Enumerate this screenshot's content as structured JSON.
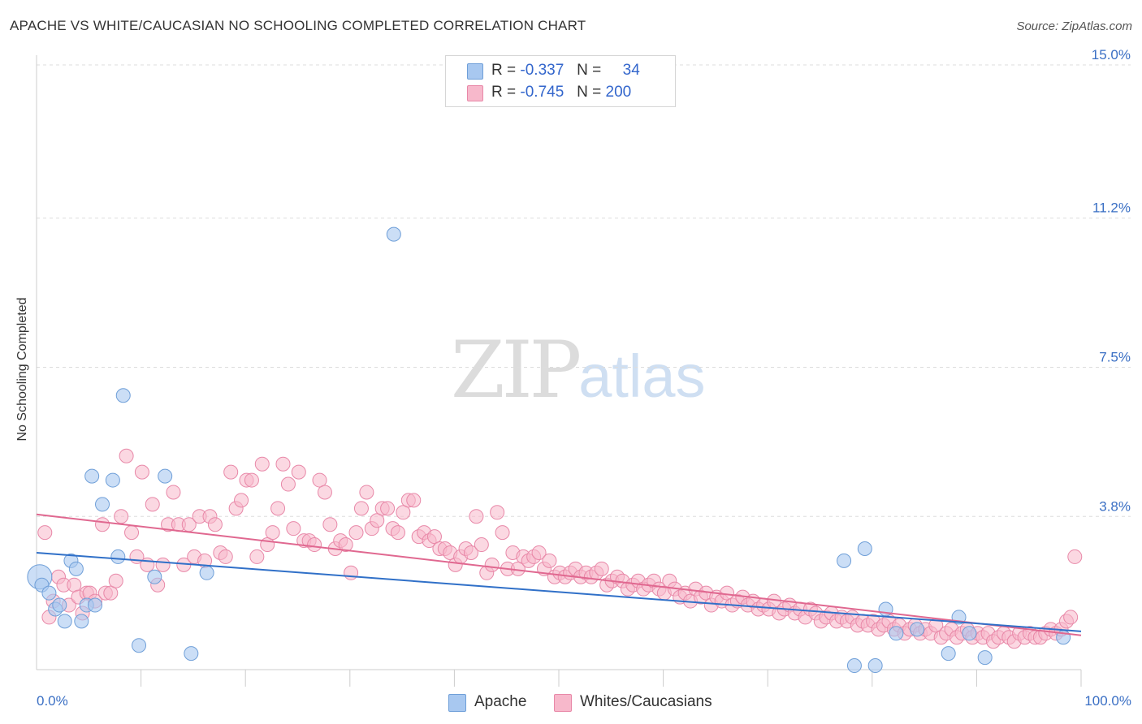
{
  "header": {
    "title": "APACHE VS WHITE/CAUCASIAN NO SCHOOLING COMPLETED CORRELATION CHART",
    "source": "Source: ZipAtlas.com"
  },
  "watermark": {
    "zip": "ZIP",
    "atlas": "atlas"
  },
  "legend_top": {
    "apache": {
      "r_label": "R =",
      "r_value": "-0.337",
      "n_label": "N =",
      "n_value": "34"
    },
    "white": {
      "r_label": "R =",
      "r_value": "-0.745",
      "n_label": "N =",
      "n_value": "200"
    }
  },
  "legend_bottom": {
    "apache": "Apache",
    "white": "Whites/Caucasians"
  },
  "colors": {
    "apache_fill": "#a8c8f0",
    "apache_stroke": "#6f9fd8",
    "apache_line": "#3070c8",
    "white_fill": "#f7b8cb",
    "white_stroke": "#e888a8",
    "white_line": "#e06890",
    "tick_label": "#3a6fc4",
    "grid": "#dddddd"
  },
  "chart_data": {
    "type": "scatter",
    "title": "APACHE VS WHITE/CAUCASIAN NO SCHOOLING COMPLETED CORRELATION CHART",
    "xlabel": "",
    "ylabel": "No Schooling Completed",
    "xlim": [
      0,
      100
    ],
    "ylim": [
      0,
      15
    ],
    "x_tick_labels": [
      "0.0%",
      "100.0%"
    ],
    "y_ticks": [
      3.8,
      7.5,
      11.2,
      15.0
    ],
    "y_tick_labels": [
      "3.8%",
      "7.5%",
      "11.2%",
      "15.0%"
    ],
    "grid": true,
    "legend_placement": "top-center",
    "series": [
      {
        "name": "Apache",
        "r": -0.337,
        "n": 34,
        "trend": {
          "x": [
            0,
            100
          ],
          "y": [
            2.9,
            0.95
          ]
        },
        "points": [
          [
            0.3,
            2.3
          ],
          [
            0.5,
            2.1
          ],
          [
            1.2,
            1.9
          ],
          [
            1.8,
            1.5
          ],
          [
            2.2,
            1.6
          ],
          [
            2.7,
            1.2
          ],
          [
            3.3,
            2.7
          ],
          [
            3.8,
            2.5
          ],
          [
            4.3,
            1.2
          ],
          [
            4.8,
            1.6
          ],
          [
            5.6,
            1.6
          ],
          [
            5.3,
            4.8
          ],
          [
            6.3,
            4.1
          ],
          [
            7.3,
            4.7
          ],
          [
            7.8,
            2.8
          ],
          [
            8.3,
            6.8
          ],
          [
            9.8,
            0.6
          ],
          [
            11.3,
            2.3
          ],
          [
            12.3,
            4.8
          ],
          [
            14.8,
            0.4
          ],
          [
            16.3,
            2.4
          ],
          [
            34.2,
            10.8
          ],
          [
            77.3,
            2.7
          ],
          [
            78.3,
            0.1
          ],
          [
            79.3,
            3.0
          ],
          [
            80.3,
            0.1
          ],
          [
            81.3,
            1.5
          ],
          [
            82.3,
            0.9
          ],
          [
            84.3,
            1.0
          ],
          [
            87.3,
            0.4
          ],
          [
            88.3,
            1.3
          ],
          [
            89.3,
            0.9
          ],
          [
            90.8,
            0.3
          ],
          [
            98.3,
            0.8
          ]
        ]
      },
      {
        "name": "Whites/Caucasians",
        "r": -0.745,
        "n": 200,
        "trend": {
          "x": [
            0,
            100
          ],
          "y": [
            3.85,
            0.85
          ]
        },
        "points": [
          [
            0.8,
            3.4
          ],
          [
            1.2,
            1.3
          ],
          [
            1.6,
            1.7
          ],
          [
            2.1,
            2.3
          ],
          [
            2.6,
            2.1
          ],
          [
            3.1,
            1.6
          ],
          [
            3.6,
            2.1
          ],
          [
            4.0,
            1.8
          ],
          [
            4.4,
            1.4
          ],
          [
            4.8,
            1.9
          ],
          [
            5.1,
            1.9
          ],
          [
            5.6,
            1.7
          ],
          [
            6.3,
            3.6
          ],
          [
            6.6,
            1.9
          ],
          [
            7.1,
            1.9
          ],
          [
            7.6,
            2.2
          ],
          [
            8.1,
            3.8
          ],
          [
            8.6,
            5.3
          ],
          [
            9.1,
            3.4
          ],
          [
            9.6,
            2.8
          ],
          [
            10.1,
            4.9
          ],
          [
            10.6,
            2.6
          ],
          [
            11.1,
            4.1
          ],
          [
            11.6,
            2.1
          ],
          [
            12.1,
            2.6
          ],
          [
            12.6,
            3.6
          ],
          [
            13.1,
            4.4
          ],
          [
            13.6,
            3.6
          ],
          [
            14.1,
            2.6
          ],
          [
            14.6,
            3.6
          ],
          [
            15.1,
            2.8
          ],
          [
            15.6,
            3.8
          ],
          [
            16.1,
            2.7
          ],
          [
            16.6,
            3.8
          ],
          [
            17.1,
            3.6
          ],
          [
            17.6,
            2.9
          ],
          [
            18.1,
            2.8
          ],
          [
            18.6,
            4.9
          ],
          [
            19.1,
            4.0
          ],
          [
            19.6,
            4.2
          ],
          [
            20.1,
            4.7
          ],
          [
            20.6,
            4.7
          ],
          [
            21.1,
            2.8
          ],
          [
            21.6,
            5.1
          ],
          [
            22.1,
            3.1
          ],
          [
            22.6,
            3.4
          ],
          [
            23.1,
            4.0
          ],
          [
            23.6,
            5.1
          ],
          [
            24.1,
            4.6
          ],
          [
            24.6,
            3.5
          ],
          [
            25.1,
            4.9
          ],
          [
            25.6,
            3.2
          ],
          [
            26.1,
            3.2
          ],
          [
            26.6,
            3.1
          ],
          [
            27.1,
            4.7
          ],
          [
            27.6,
            4.4
          ],
          [
            28.1,
            3.6
          ],
          [
            28.6,
            3.0
          ],
          [
            29.1,
            3.2
          ],
          [
            29.6,
            3.1
          ],
          [
            30.1,
            2.4
          ],
          [
            30.6,
            3.4
          ],
          [
            31.1,
            4.0
          ],
          [
            31.6,
            4.4
          ],
          [
            32.1,
            3.5
          ],
          [
            32.6,
            3.7
          ],
          [
            33.1,
            4.0
          ],
          [
            33.6,
            4.0
          ],
          [
            34.1,
            3.5
          ],
          [
            34.6,
            3.4
          ],
          [
            35.1,
            3.9
          ],
          [
            35.6,
            4.2
          ],
          [
            36.1,
            4.2
          ],
          [
            36.6,
            3.3
          ],
          [
            37.1,
            3.4
          ],
          [
            37.6,
            3.2
          ],
          [
            38.1,
            3.3
          ],
          [
            38.6,
            3.0
          ],
          [
            39.1,
            3.0
          ],
          [
            39.6,
            2.9
          ],
          [
            40.1,
            2.6
          ],
          [
            40.6,
            2.8
          ],
          [
            41.1,
            3.0
          ],
          [
            41.6,
            2.9
          ],
          [
            42.1,
            3.8
          ],
          [
            42.6,
            3.1
          ],
          [
            43.1,
            2.4
          ],
          [
            43.6,
            2.6
          ],
          [
            44.1,
            3.9
          ],
          [
            44.6,
            3.4
          ],
          [
            45.1,
            2.5
          ],
          [
            45.6,
            2.9
          ],
          [
            46.1,
            2.5
          ],
          [
            46.6,
            2.8
          ],
          [
            47.1,
            2.7
          ],
          [
            47.6,
            2.8
          ],
          [
            48.1,
            2.9
          ],
          [
            48.6,
            2.5
          ],
          [
            49.1,
            2.7
          ],
          [
            49.6,
            2.3
          ],
          [
            50.1,
            2.4
          ],
          [
            50.6,
            2.3
          ],
          [
            51.1,
            2.4
          ],
          [
            51.6,
            2.5
          ],
          [
            52.1,
            2.3
          ],
          [
            52.6,
            2.4
          ],
          [
            53.1,
            2.3
          ],
          [
            53.6,
            2.4
          ],
          [
            54.1,
            2.5
          ],
          [
            54.6,
            2.1
          ],
          [
            55.1,
            2.2
          ],
          [
            55.6,
            2.3
          ],
          [
            56.1,
            2.2
          ],
          [
            56.6,
            2.0
          ],
          [
            57.1,
            2.1
          ],
          [
            57.6,
            2.2
          ],
          [
            58.1,
            2.0
          ],
          [
            58.6,
            2.1
          ],
          [
            59.1,
            2.2
          ],
          [
            59.6,
            2.0
          ],
          [
            60.1,
            1.9
          ],
          [
            60.6,
            2.2
          ],
          [
            61.1,
            2.0
          ],
          [
            61.6,
            1.8
          ],
          [
            62.1,
            1.9
          ],
          [
            62.6,
            1.7
          ],
          [
            63.1,
            2.0
          ],
          [
            63.6,
            1.8
          ],
          [
            64.1,
            1.9
          ],
          [
            64.6,
            1.6
          ],
          [
            65.1,
            1.8
          ],
          [
            65.6,
            1.7
          ],
          [
            66.1,
            1.9
          ],
          [
            66.6,
            1.6
          ],
          [
            67.1,
            1.7
          ],
          [
            67.6,
            1.8
          ],
          [
            68.1,
            1.6
          ],
          [
            68.6,
            1.7
          ],
          [
            69.1,
            1.5
          ],
          [
            69.6,
            1.6
          ],
          [
            70.1,
            1.5
          ],
          [
            70.6,
            1.7
          ],
          [
            71.1,
            1.4
          ],
          [
            71.6,
            1.5
          ],
          [
            72.1,
            1.6
          ],
          [
            72.6,
            1.4
          ],
          [
            73.1,
            1.5
          ],
          [
            73.6,
            1.3
          ],
          [
            74.1,
            1.5
          ],
          [
            74.6,
            1.4
          ],
          [
            75.1,
            1.2
          ],
          [
            75.6,
            1.3
          ],
          [
            76.1,
            1.4
          ],
          [
            76.6,
            1.2
          ],
          [
            77.1,
            1.3
          ],
          [
            77.6,
            1.2
          ],
          [
            78.1,
            1.3
          ],
          [
            78.6,
            1.1
          ],
          [
            79.1,
            1.2
          ],
          [
            79.6,
            1.1
          ],
          [
            80.1,
            1.2
          ],
          [
            80.6,
            1.0
          ],
          [
            81.1,
            1.1
          ],
          [
            81.6,
            1.2
          ],
          [
            82.1,
            1.0
          ],
          [
            82.6,
            1.1
          ],
          [
            83.1,
            0.9
          ],
          [
            83.6,
            1.0
          ],
          [
            84.1,
            1.1
          ],
          [
            84.6,
            0.9
          ],
          [
            85.1,
            1.0
          ],
          [
            85.6,
            0.9
          ],
          [
            86.1,
            1.1
          ],
          [
            86.6,
            0.8
          ],
          [
            87.1,
            0.9
          ],
          [
            87.6,
            1.0
          ],
          [
            88.1,
            0.8
          ],
          [
            88.6,
            0.9
          ],
          [
            89.1,
            1.0
          ],
          [
            89.6,
            0.8
          ],
          [
            90.1,
            0.9
          ],
          [
            90.6,
            0.8
          ],
          [
            91.1,
            0.9
          ],
          [
            91.6,
            0.7
          ],
          [
            92.1,
            0.8
          ],
          [
            92.6,
            0.9
          ],
          [
            93.1,
            0.8
          ],
          [
            93.6,
            0.7
          ],
          [
            94.1,
            0.9
          ],
          [
            94.6,
            0.8
          ],
          [
            95.1,
            0.9
          ],
          [
            95.6,
            0.8
          ],
          [
            96.1,
            0.8
          ],
          [
            96.6,
            0.9
          ],
          [
            97.1,
            1.0
          ],
          [
            97.6,
            0.9
          ],
          [
            98.1,
            1.0
          ],
          [
            98.6,
            1.2
          ],
          [
            99.0,
            1.3
          ],
          [
            99.4,
            2.8
          ]
        ]
      }
    ]
  }
}
